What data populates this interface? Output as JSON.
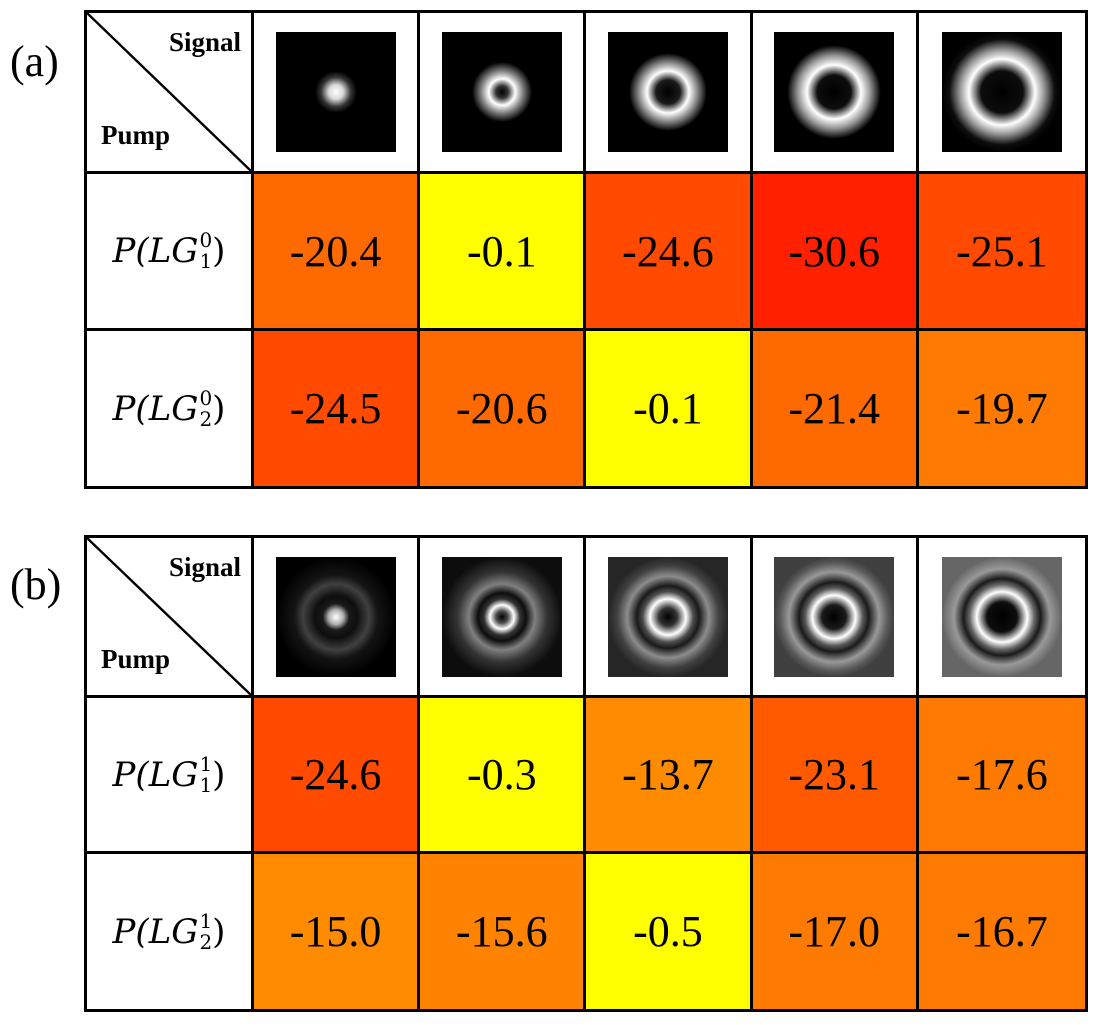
{
  "chart_data": [
    {
      "type": "table",
      "panel_label": "(a)",
      "corner_top": "Signal",
      "corner_bottom": "Pump",
      "signal_profiles": [
        "gauss",
        "ring1",
        "ring2",
        "ring3",
        "ring4"
      ],
      "rows": [
        {
          "label_prefix": "P(LG",
          "sup": "0",
          "sub": "1",
          "label_suffix": ")",
          "values": [
            "-20.4",
            "-0.1",
            "-24.6",
            "-30.6",
            "-25.1"
          ],
          "colors": [
            "#FF6A00",
            "#FFFF00",
            "#FF4A00",
            "#FF2000",
            "#FF4A00"
          ]
        },
        {
          "label_prefix": "P(LG",
          "sup": "0",
          "sub": "2",
          "label_suffix": ")",
          "values": [
            "-24.5",
            "-20.6",
            "-0.1",
            "-21.4",
            "-19.7"
          ],
          "colors": [
            "#FF4A00",
            "#FF6A00",
            "#FFFF00",
            "#FF6A00",
            "#FF7A00"
          ]
        }
      ]
    },
    {
      "type": "table",
      "panel_label": "(b)",
      "corner_top": "Signal",
      "corner_bottom": "Pump",
      "signal_profiles": [
        "gauss-r",
        "ring1-r",
        "ring2-r",
        "ring3-r",
        "ring4-r"
      ],
      "rows": [
        {
          "label_prefix": "P(LG",
          "sup": "1",
          "sub": "1",
          "label_suffix": ")",
          "values": [
            "-24.6",
            "-0.3",
            "-13.7",
            "-23.1",
            "-17.6"
          ],
          "colors": [
            "#FF4A00",
            "#FFFF00",
            "#FF8C00",
            "#FF5A00",
            "#FF7A00"
          ]
        },
        {
          "label_prefix": "P(LG",
          "sup": "1",
          "sub": "2",
          "label_suffix": ")",
          "values": [
            "-15.0",
            "-15.6",
            "-0.5",
            "-17.0",
            "-16.7"
          ],
          "colors": [
            "#FF8C00",
            "#FF8200",
            "#FFFF00",
            "#FF7A00",
            "#FF7A00"
          ]
        }
      ]
    }
  ]
}
